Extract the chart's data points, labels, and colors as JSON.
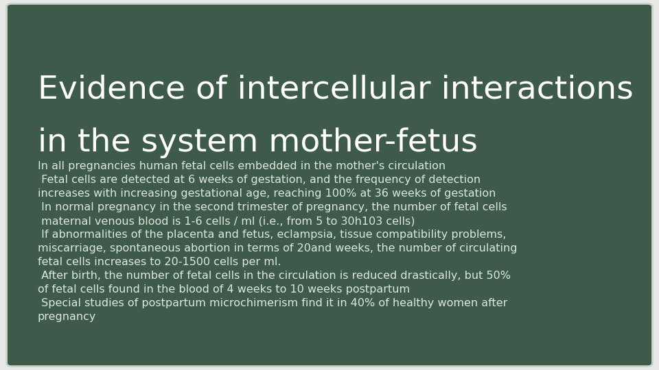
{
  "background_color": "#e8e8e8",
  "slide_bg_color": "#3d5a4a",
  "border_color": "#c8d4c8",
  "title_line1": "Evidence of intercellular interactions",
  "title_line2": "in the system mother-fetus",
  "title_color": "#ffffff",
  "title_fontsize": 34,
  "body_color": "#dce8dc",
  "body_fontsize": 11.5,
  "body_text": "In all pregnancies human fetal cells embedded in the mother's circulation\n Fetal cells are detected at 6 weeks of gestation, and the frequency of detection\nincreases with increasing gestational age, reaching 100% at 36 weeks of gestation\n In normal pregnancy in the second trimester of pregnancy, the number of fetal cells\n maternal venous blood is 1-6 cells / ml (i.e., from 5 to 30h103 cells)\n If abnormalities of the placenta and fetus, eclampsia, tissue compatibility problems,\nmiscarriage, spontaneous abortion in terms of 20and weeks, the number of circulating\nfetal cells increases to 20-1500 cells per ml.\n After birth, the number of fetal cells in the circulation is reduced drastically, but 50%\nof fetal cells found in the blood of 4 weeks to 10 weeks postpartum\n Special studies of postpartum microchimerism find it in 40% of healthy women after\npregnancy"
}
